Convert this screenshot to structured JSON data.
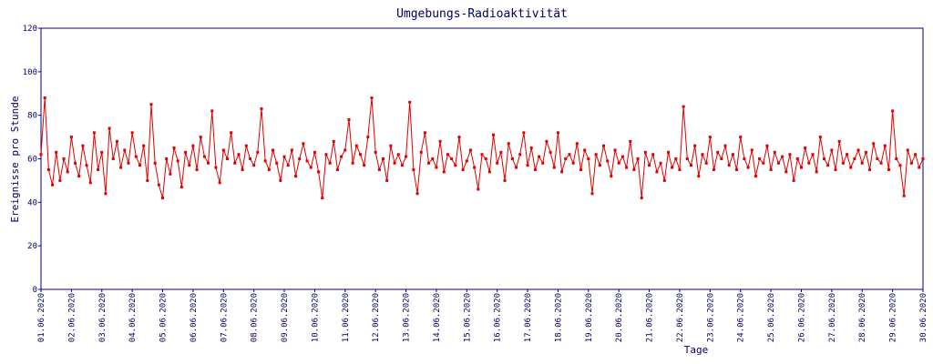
{
  "chart_data": {
    "type": "line",
    "title": "Umgebungs-Radioaktivität",
    "x_label": "Tage",
    "y_label": "Ereignisse pro Stunde",
    "xlim": [
      0,
      696
    ],
    "ylim": [
      0,
      120
    ],
    "yticks": [
      0,
      20,
      40,
      60,
      80,
      100,
      120
    ],
    "xticks": [
      {
        "value": 0,
        "label": "01.06.2020"
      },
      {
        "value": 24,
        "label": "02.06.2020"
      },
      {
        "value": 48,
        "label": "03.06.2020"
      },
      {
        "value": 72,
        "label": "04.06.2020"
      },
      {
        "value": 96,
        "label": "05.06.2020"
      },
      {
        "value": 120,
        "label": "06.06.2020"
      },
      {
        "value": 144,
        "label": "07.06.2020"
      },
      {
        "value": 168,
        "label": "08.06.2020"
      },
      {
        "value": 192,
        "label": "09.06.2020"
      },
      {
        "value": 216,
        "label": "10.06.2020"
      },
      {
        "value": 240,
        "label": "11.06.2020"
      },
      {
        "value": 264,
        "label": "12.06.2020"
      },
      {
        "value": 288,
        "label": "13.06.2020"
      },
      {
        "value": 312,
        "label": "14.06.2020"
      },
      {
        "value": 336,
        "label": "15.06.2020"
      },
      {
        "value": 360,
        "label": "16.06.2020"
      },
      {
        "value": 384,
        "label": "17.06.2020"
      },
      {
        "value": 408,
        "label": "18.06.2020"
      },
      {
        "value": 432,
        "label": "19.06.2020"
      },
      {
        "value": 456,
        "label": "20.06.2020"
      },
      {
        "value": 480,
        "label": "21.06.2020"
      },
      {
        "value": 504,
        "label": "22.06.2020"
      },
      {
        "value": 528,
        "label": "23.06.2020"
      },
      {
        "value": 552,
        "label": "24.06.2020"
      },
      {
        "value": 576,
        "label": "25.06.2020"
      },
      {
        "value": 600,
        "label": "26.06.2020"
      },
      {
        "value": 624,
        "label": "27.06.2020"
      },
      {
        "value": 648,
        "label": "28.06.2020"
      },
      {
        "value": 672,
        "label": "29.06.2020"
      },
      {
        "value": 696,
        "label": "30.06.2020"
      }
    ],
    "x": [
      0,
      3,
      6,
      9,
      12,
      15,
      18,
      21,
      24,
      27,
      30,
      33,
      36,
      39,
      42,
      45,
      48,
      51,
      54,
      57,
      60,
      63,
      66,
      69,
      72,
      75,
      78,
      81,
      84,
      87,
      90,
      93,
      96,
      99,
      102,
      105,
      108,
      111,
      114,
      117,
      120,
      123,
      126,
      129,
      132,
      135,
      138,
      141,
      144,
      147,
      150,
      153,
      156,
      159,
      162,
      165,
      168,
      171,
      174,
      177,
      180,
      183,
      186,
      189,
      192,
      195,
      198,
      201,
      204,
      207,
      210,
      213,
      216,
      219,
      222,
      225,
      228,
      231,
      234,
      237,
      240,
      243,
      246,
      249,
      252,
      255,
      258,
      261,
      264,
      267,
      270,
      273,
      276,
      279,
      282,
      285,
      288,
      291,
      294,
      297,
      300,
      303,
      306,
      309,
      312,
      315,
      318,
      321,
      324,
      327,
      330,
      333,
      336,
      339,
      342,
      345,
      348,
      351,
      354,
      357,
      360,
      363,
      366,
      369,
      372,
      375,
      378,
      381,
      384,
      387,
      390,
      393,
      396,
      399,
      402,
      405,
      408,
      411,
      414,
      417,
      420,
      423,
      426,
      429,
      432,
      435,
      438,
      441,
      444,
      447,
      450,
      453,
      456,
      459,
      462,
      465,
      468,
      471,
      474,
      477,
      480,
      483,
      486,
      489,
      492,
      495,
      498,
      501,
      504,
      507,
      510,
      513,
      516,
      519,
      522,
      525,
      528,
      531,
      534,
      537,
      540,
      543,
      546,
      549,
      552,
      555,
      558,
      561,
      564,
      567,
      570,
      573,
      576,
      579,
      582,
      585,
      588,
      591,
      594,
      597,
      600,
      603,
      606,
      609,
      612,
      615,
      618,
      621,
      624,
      627,
      630,
      633,
      636,
      639,
      642,
      645,
      648,
      651,
      654,
      657,
      660,
      663,
      666,
      669,
      672,
      675,
      678,
      681,
      684,
      687,
      690,
      693,
      696
    ],
    "series": [
      {
        "name": "Ereignisse",
        "color": "#e00000",
        "values": [
          62,
          88,
          55,
          48,
          63,
          50,
          60,
          54,
          70,
          58,
          52,
          66,
          57,
          49,
          72,
          55,
          63,
          44,
          74,
          60,
          68,
          56,
          64,
          58,
          72,
          61,
          57,
          66,
          50,
          85,
          58,
          48,
          42,
          60,
          53,
          65,
          59,
          47,
          63,
          57,
          66,
          55,
          70,
          61,
          58,
          82,
          56,
          49,
          64,
          60,
          72,
          58,
          62,
          55,
          66,
          60,
          57,
          63,
          83,
          59,
          55,
          64,
          58,
          50,
          61,
          57,
          64,
          52,
          60,
          67,
          59,
          56,
          63,
          54,
          42,
          62,
          58,
          68,
          55,
          61,
          64,
          78,
          58,
          66,
          62,
          57,
          70,
          88,
          63,
          55,
          60,
          50,
          66,
          58,
          62,
          57,
          61,
          86,
          55,
          44,
          63,
          72,
          58,
          60,
          56,
          68,
          54,
          62,
          60,
          57,
          70,
          55,
          59,
          64,
          56,
          46,
          62,
          60,
          54,
          71,
          58,
          63,
          50,
          67,
          60,
          56,
          62,
          72,
          57,
          65,
          55,
          61,
          58,
          68,
          63,
          56,
          72,
          54,
          60,
          62,
          58,
          67,
          55,
          64,
          60,
          44,
          62,
          57,
          66,
          59,
          52,
          64,
          58,
          61,
          56,
          68,
          55,
          60,
          42,
          63,
          57,
          62,
          54,
          58,
          50,
          63,
          56,
          60,
          55,
          84,
          60,
          57,
          66,
          52,
          62,
          58,
          70,
          55,
          63,
          60,
          66,
          57,
          62,
          55,
          70,
          60,
          56,
          64,
          52,
          60,
          58,
          66,
          55,
          63,
          58,
          61,
          54,
          62,
          50,
          60,
          56,
          65,
          58,
          62,
          54,
          70,
          60,
          57,
          64,
          55,
          68,
          58,
          62,
          56,
          60,
          64,
          58,
          63,
          55,
          67,
          60,
          58,
          66,
          55,
          82,
          60,
          57,
          43,
          64,
          58,
          62,
          56,
          60
        ]
      }
    ]
  }
}
